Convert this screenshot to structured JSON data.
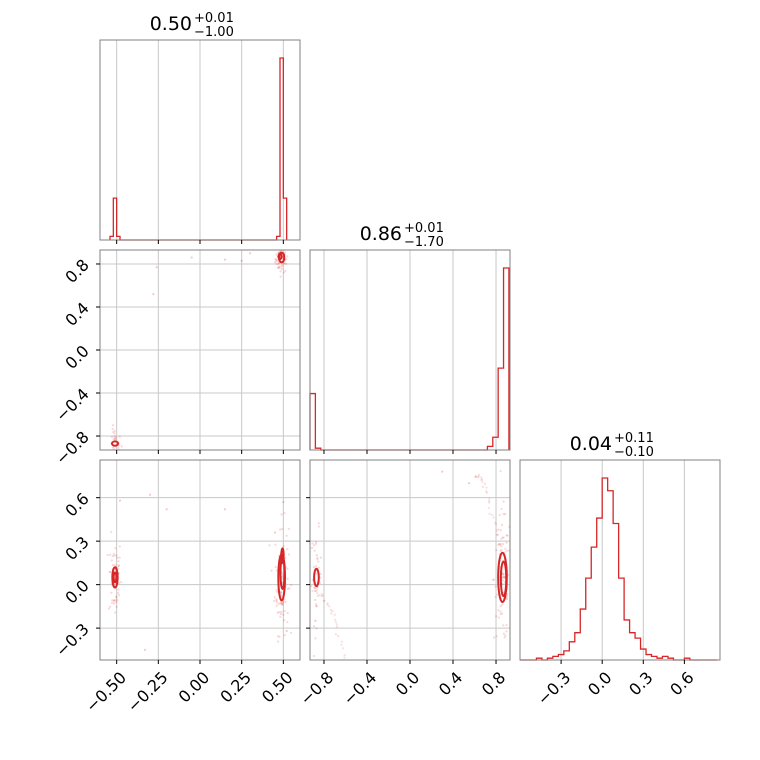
{
  "chart_data": {
    "type": "corner",
    "color": "#d62728",
    "grid": true,
    "panels": [
      {
        "kind": "hist",
        "param": 0,
        "title": {
          "value": "0.50",
          "plus": "+0.01",
          "minus": "−1.00"
        },
        "xlim": [
          -0.6,
          0.6
        ],
        "bin_edges": [
          -0.54,
          -0.52,
          -0.5,
          -0.48,
          0.46,
          0.48,
          0.5,
          0.52
        ],
        "counts": [
          0.02,
          0.23,
          0.02,
          0.0,
          0.02,
          1.0,
          0.23
        ]
      },
      {
        "kind": "hist",
        "param": 1,
        "title": {
          "value": "0.86",
          "plus": "+0.01",
          "minus": "−1.70"
        },
        "xlim": [
          -0.93,
          0.93
        ],
        "bin_edges": [
          -0.93,
          -0.88,
          -0.83,
          -0.78,
          0.72,
          0.77,
          0.82,
          0.87,
          0.92
        ],
        "counts": [
          0.31,
          0.01,
          0.0,
          0.0,
          0.02,
          0.07,
          0.45,
          1.0
        ]
      },
      {
        "kind": "hist",
        "param": 2,
        "title": {
          "value": "0.04",
          "plus": "+0.11",
          "minus": "−0.10"
        },
        "xlim": [
          -0.6,
          0.86
        ],
        "bin_edges": [
          -0.6,
          -0.56,
          -0.52,
          -0.48,
          -0.44,
          -0.4,
          -0.36,
          -0.32,
          -0.28,
          -0.24,
          -0.2,
          -0.16,
          -0.12,
          -0.08,
          -0.04,
          0.0,
          0.04,
          0.08,
          0.12,
          0.16,
          0.2,
          0.24,
          0.28,
          0.32,
          0.36,
          0.4,
          0.44,
          0.48,
          0.52,
          0.56,
          0.6,
          0.64,
          0.68,
          0.72,
          0.76,
          0.8,
          0.84
        ],
        "counts": [
          0.0,
          0.0,
          0.0,
          0.01,
          0.0,
          0.01,
          0.02,
          0.03,
          0.05,
          0.1,
          0.15,
          0.28,
          0.45,
          0.62,
          0.78,
          1.0,
          0.93,
          0.75,
          0.45,
          0.22,
          0.15,
          0.12,
          0.06,
          0.03,
          0.02,
          0.01,
          0.02,
          0.01,
          0.0,
          0.0,
          0.01,
          0.0,
          0.0,
          0.0,
          0.0,
          0.0
        ]
      },
      {
        "kind": "scatter2d",
        "x_param": 0,
        "y_param": 1,
        "xlim": [
          -0.6,
          0.6
        ],
        "ylim": [
          -0.93,
          0.93
        ],
        "clusters": [
          {
            "cx": 0.49,
            "cy": 0.85,
            "sx": 0.012,
            "sy": 0.04,
            "n": 70
          },
          {
            "cx": -0.51,
            "cy": -0.86,
            "sx": 0.012,
            "sy": 0.04,
            "n": 25
          }
        ],
        "outliers": [
          [
            -0.26,
            0.77
          ],
          [
            -0.05,
            0.86
          ],
          [
            0.25,
            0.83
          ],
          [
            -0.28,
            0.52
          ],
          [
            0.3,
            0.9
          ],
          [
            0.15,
            0.84
          ]
        ],
        "contours": [
          {
            "cx": 0.49,
            "cy": 0.86,
            "rx": 0.016,
            "ry": 0.045
          },
          {
            "cx": 0.48,
            "cy": 0.87,
            "rx": 0.009,
            "ry": 0.025
          },
          {
            "cx": -0.51,
            "cy": -0.87,
            "rx": 0.018,
            "ry": 0.02
          }
        ]
      },
      {
        "kind": "scatter2d",
        "x_param": 0,
        "y_param": 2,
        "xlim": [
          -0.6,
          0.6
        ],
        "ylim": [
          -0.52,
          0.86
        ],
        "clusters": [
          {
            "cx": -0.51,
            "cy": 0.05,
            "sx": 0.012,
            "sy": 0.09,
            "n": 60
          },
          {
            "cx": 0.49,
            "cy": 0.05,
            "sx": 0.013,
            "sy": 0.12,
            "n": 100
          }
        ],
        "outliers": [
          [
            -0.2,
            0.52
          ],
          [
            -0.3,
            0.62
          ],
          [
            -0.48,
            0.58
          ],
          [
            0.15,
            0.52
          ],
          [
            -0.33,
            -0.45
          ],
          [
            0.5,
            0.57
          ],
          [
            0.52,
            -0.32
          ],
          [
            0.45,
            0.36
          ]
        ],
        "contours": [
          {
            "cx": -0.51,
            "cy": 0.05,
            "rx": 0.016,
            "ry": 0.07
          },
          {
            "cx": -0.51,
            "cy": 0.05,
            "rx": 0.008,
            "ry": 0.035
          },
          {
            "cx": 0.49,
            "cy": 0.05,
            "rx": 0.02,
            "ry": 0.16
          },
          {
            "cx": 0.495,
            "cy": 0.08,
            "rx": 0.012,
            "ry": 0.11
          },
          {
            "cx": 0.495,
            "cy": 0.2,
            "rx": 0.007,
            "ry": 0.05
          }
        ]
      },
      {
        "kind": "scatter2d",
        "x_param": 1,
        "y_param": 2,
        "xlim": [
          -0.93,
          0.93
        ],
        "ylim": [
          -0.52,
          0.86
        ],
        "clusters": [
          {
            "cx": -0.87,
            "cy": 0.05,
            "sx": 0.015,
            "sy": 0.1,
            "n": 40
          },
          {
            "cx": 0.86,
            "cy": 0.05,
            "sx": 0.025,
            "sy": 0.14,
            "n": 100
          }
        ],
        "arcs": [
          {
            "cx": -0.93,
            "cy": -0.1,
            "pts": 30,
            "x0": -0.9,
            "x1": -0.6,
            "y0": -0.05,
            "y1": -0.5
          },
          {
            "cx": 0.9,
            "cy": 0.6,
            "pts": 30,
            "x0": 0.6,
            "x1": 0.85,
            "y0": 0.75,
            "y1": 0.2
          }
        ],
        "outliers": [
          [
            0.3,
            0.78
          ],
          [
            0.55,
            0.7
          ],
          [
            -0.88,
            -0.25
          ]
        ],
        "contours": [
          {
            "cx": 0.86,
            "cy": 0.05,
            "rx": 0.04,
            "ry": 0.17
          },
          {
            "cx": 0.87,
            "cy": 0.04,
            "rx": 0.025,
            "ry": 0.12
          },
          {
            "cx": -0.87,
            "cy": 0.05,
            "rx": 0.022,
            "ry": 0.06
          }
        ]
      }
    ],
    "axes": {
      "x0_ticks": [
        -0.5,
        -0.25,
        0.0,
        0.25,
        0.5
      ],
      "x0_tick_labels": [
        "−0.50",
        "−0.25",
        "0.00",
        "0.25",
        "0.50"
      ],
      "x1_ticks": [
        -0.8,
        -0.4,
        0.0,
        0.4,
        0.8
      ],
      "x1_tick_labels": [
        "−0.8",
        "−0.4",
        "0.0",
        "0.4",
        "0.8"
      ],
      "x2_ticks": [
        -0.3,
        0.0,
        0.3,
        0.6
      ],
      "x2_tick_labels": [
        "−0.3",
        "0.0",
        "0.3",
        "0.6"
      ],
      "y1_ticks": [
        -0.8,
        -0.4,
        0.0,
        0.4,
        0.8
      ],
      "y1_tick_labels": [
        "−0.8",
        "−0.4",
        "0.0",
        "0.4",
        "0.8"
      ],
      "y2_ticks": [
        -0.3,
        0.0,
        0.3,
        0.6
      ],
      "y2_tick_labels": [
        "−0.3",
        "0.0",
        "0.3",
        "0.6"
      ]
    }
  }
}
